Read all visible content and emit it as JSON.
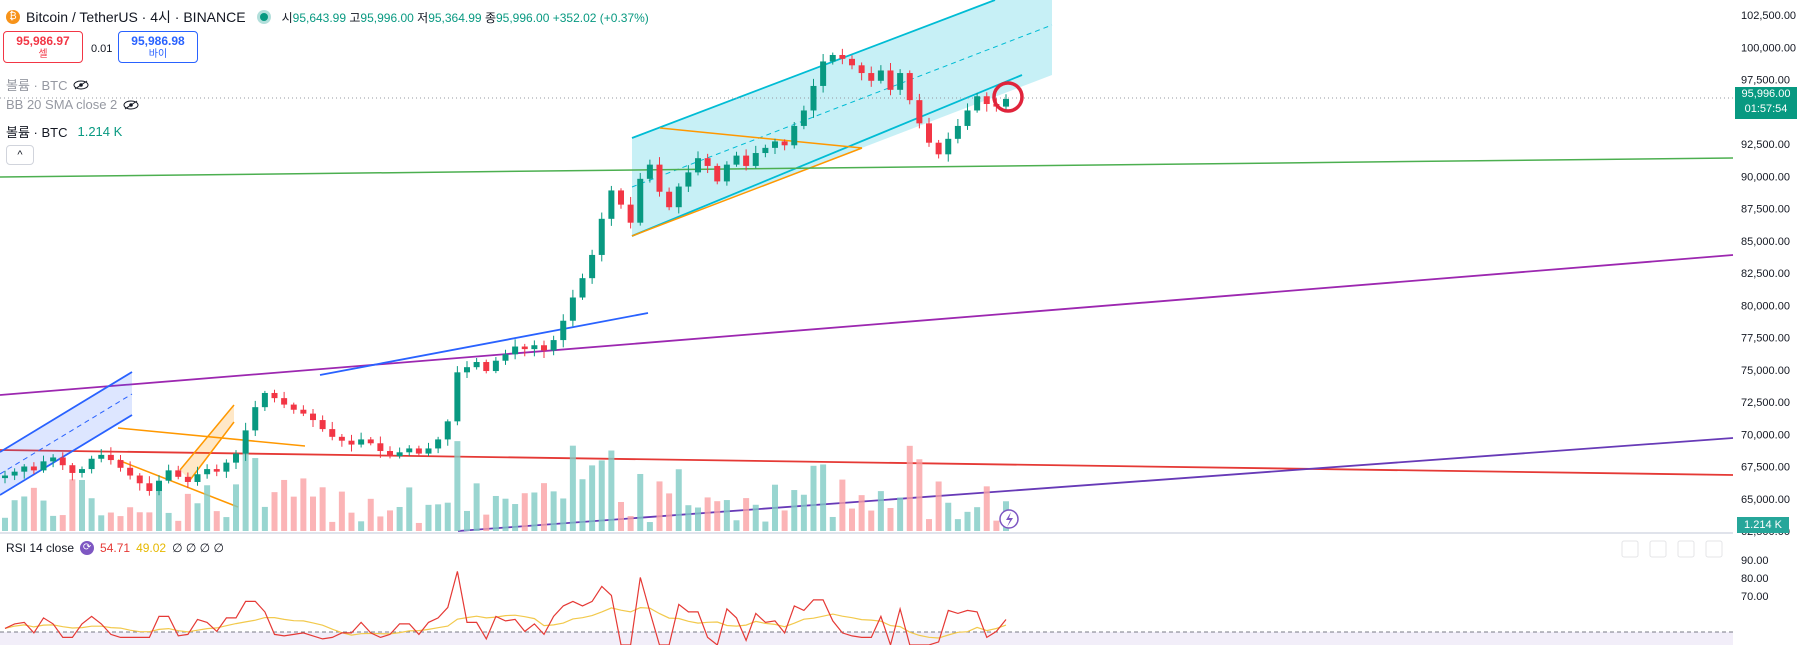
{
  "header": {
    "symbol": "Bitcoin / TetherUS · 4시 · BINANCE",
    "open_label": "시",
    "open": "95,643.99",
    "high_label": "고",
    "high": "95,996.00",
    "low_label": "저",
    "low": "95,364.99",
    "close_label": "종",
    "close": "95,996.00",
    "change": "+352.02 (+0.37%)"
  },
  "trade": {
    "sell_price": "95,986.97",
    "sell_label": "셀",
    "spread": "0.01",
    "buy_price": "95,986.98",
    "buy_label": "바이"
  },
  "legend": {
    "volume_hidden": "볼륨 · BTC",
    "bb": "BB 20 SMA close 2",
    "volume": "볼륨 · BTC",
    "volume_value": "1.214 K",
    "collapse": "^"
  },
  "price_axis": [
    "102,500.00",
    "100,000.00",
    "97,500.00",
    "92,500.00",
    "90,000.00",
    "87,500.00",
    "85,000.00",
    "82,500.00",
    "80,000.00",
    "77,500.00",
    "75,000.00",
    "72,500.00",
    "70,000.00",
    "67,500.00",
    "65,000.00",
    "62,500.00"
  ],
  "last_price": {
    "price": "95,996.00",
    "countdown": "01:57:54"
  },
  "volume_tag": "1.214 K",
  "rsi": {
    "label": "RSI 14 close",
    "value": "54.71",
    "ma": "49.02",
    "extra": "∅ ∅ ∅ ∅",
    "axis": [
      "90.00",
      "80.00",
      "70.00"
    ]
  },
  "colors": {
    "up": "#089981",
    "down": "#f23645",
    "channel": "#00bcd4",
    "green_line": "#4caf50",
    "purple_line": "#9c27b0",
    "red_line": "#e53935",
    "blue_line": "#2962ff",
    "orange": "#ff9800",
    "rsi_line": "#e53935",
    "rsi_ma": "#ffeb3b"
  },
  "chart_data": {
    "type": "candlestick",
    "ylim": [
      61000,
      103500
    ],
    "close_series": [
      66800,
      67100,
      67500,
      67200,
      67900,
      68200,
      67600,
      67000,
      67300,
      68100,
      68400,
      68000,
      67400,
      66800,
      66200,
      65600,
      66400,
      67200,
      66700,
      66300,
      66900,
      67300,
      67100,
      67800,
      68500,
      70300,
      72100,
      73200,
      72800,
      72300,
      71900,
      71600,
      71100,
      70400,
      69800,
      69500,
      69200,
      69600,
      69300,
      68700,
      68300,
      68600,
      68900,
      68500,
      68900,
      69600,
      71000,
      74800,
      75200,
      75600,
      74900,
      75700,
      76200,
      76800,
      76600,
      76900,
      76500,
      77300,
      78800,
      80600,
      82100,
      83900,
      86700,
      88900,
      87800,
      86400,
      89800,
      90900,
      88800,
      87600,
      89200,
      90300,
      91400,
      90800,
      89600,
      90900,
      91600,
      90800,
      91800,
      92200,
      92700,
      92400,
      93900,
      95100,
      97000,
      98900,
      99400,
      99100,
      98600,
      98000,
      97400,
      98200,
      96700,
      98000,
      95900,
      94100,
      92600,
      91700,
      92900,
      93900,
      95100,
      96200,
      95600,
      95400,
      95996
    ],
    "channels": "upper channel, lower channel, triangle, trendlines"
  }
}
